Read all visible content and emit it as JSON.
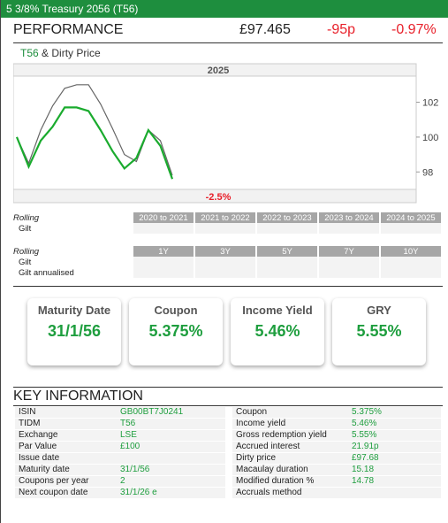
{
  "title": "5 3/8% Treasury 2056 (T56)",
  "performance": {
    "label": "PERFORMANCE",
    "price": "£97.465",
    "change": "-95p",
    "change_pct": "-0.97%"
  },
  "chart_heading": {
    "ticker": "T56",
    "rest": " & Dirty Price"
  },
  "chart_data": {
    "type": "line",
    "year_label": "2025",
    "ylim": [
      97,
      103.5
    ],
    "yticks": [
      "102",
      "100",
      "98"
    ],
    "ytick_values": [
      102,
      100,
      98
    ],
    "bottom_annotation": "-2.5%",
    "series": [
      {
        "color": "#1aab2e",
        "values": [
          100.0,
          98.3,
          99.8,
          100.6,
          101.7,
          101.7,
          101.5,
          100.4,
          99.2,
          98.2,
          98.8,
          100.4,
          99.5,
          97.6
        ]
      },
      {
        "color": "#666666",
        "values": [
          100.0,
          98.5,
          100.4,
          101.8,
          102.8,
          103.0,
          103.0,
          101.9,
          100.5,
          99.0,
          98.6,
          100.4,
          99.8,
          97.8
        ]
      }
    ]
  },
  "rolling1": {
    "label": "Rolling",
    "headers": [
      "2020 to 2021",
      "2021 to 2022",
      "2022 to 2023",
      "2023 to 2024",
      "2024 to 2025"
    ],
    "rows": [
      {
        "label": "Gilt"
      }
    ]
  },
  "rolling2": {
    "label": "Rolling",
    "headers": [
      "1Y",
      "3Y",
      "5Y",
      "7Y",
      "10Y"
    ],
    "rows": [
      {
        "label": "Gilt"
      },
      {
        "label": "Gilt annualised"
      }
    ]
  },
  "cards": [
    {
      "title": "Maturity Date",
      "value": "31/1/56"
    },
    {
      "title": "Coupon",
      "value": "5.375%"
    },
    {
      "title": "Income Yield",
      "value": "5.46%"
    },
    {
      "title": "GRY",
      "value": "5.55%"
    }
  ],
  "key_info": {
    "title": "KEY INFORMATION",
    "left": [
      {
        "k": "ISIN",
        "v": "GB00BT7J0241"
      },
      {
        "k": "TIDM",
        "v": "T56"
      },
      {
        "k": "Exchange",
        "v": "LSE"
      },
      {
        "k": "Par Value",
        "v": "£100"
      },
      {
        "k": "Issue date",
        "v": ""
      },
      {
        "k": "Maturity date",
        "v": "31/1/56"
      },
      {
        "k": "Coupons per year",
        "v": "2"
      },
      {
        "k": "Next coupon date",
        "v": "31/1/26 e"
      }
    ],
    "right": [
      {
        "k": "Coupon",
        "v": "5.375%"
      },
      {
        "k": "Income yield",
        "v": "5.46%"
      },
      {
        "k": "Gross redemption yield",
        "v": "5.55%"
      },
      {
        "k": "Accrued interest",
        "v": "21.91p"
      },
      {
        "k": "Dirty price",
        "v": "£97.68"
      },
      {
        "k": "Macaulay duration",
        "v": "15.18"
      },
      {
        "k": "Modified duration %",
        "v": "14.78"
      },
      {
        "k": "Accruals method",
        "v": ""
      }
    ]
  }
}
